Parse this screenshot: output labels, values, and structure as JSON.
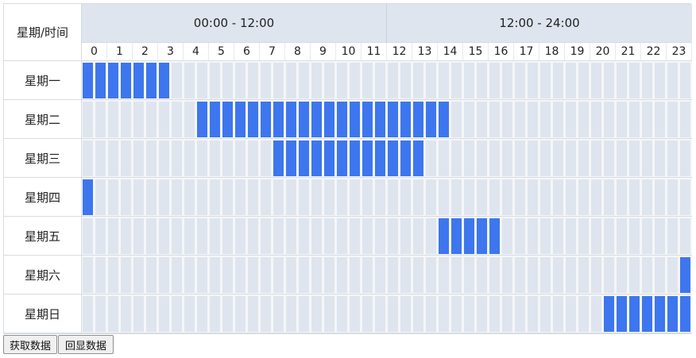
{
  "header": {
    "corner_label": "星期/时间",
    "am_label": "00:00 - 12:00",
    "pm_label": "12:00 - 24:00",
    "hours": [
      "0",
      "1",
      "2",
      "3",
      "4",
      "5",
      "6",
      "7",
      "8",
      "9",
      "10",
      "11",
      "12",
      "13",
      "14",
      "15",
      "16",
      "17",
      "18",
      "19",
      "20",
      "21",
      "22",
      "23"
    ]
  },
  "days": [
    {
      "label": "星期一",
      "selected": [
        0,
        1,
        2,
        3,
        4,
        5,
        6
      ]
    },
    {
      "label": "星期二",
      "selected": [
        9,
        10,
        11,
        12,
        13,
        14,
        15,
        16,
        17,
        18,
        19,
        20,
        21,
        22,
        23,
        24,
        25,
        26,
        27,
        28
      ]
    },
    {
      "label": "星期三",
      "selected": [
        15,
        16,
        17,
        18,
        19,
        20,
        21,
        22,
        23,
        24,
        25,
        26
      ]
    },
    {
      "label": "星期四",
      "selected": [
        0
      ]
    },
    {
      "label": "星期五",
      "selected": [
        28,
        29,
        30,
        31,
        32
      ]
    },
    {
      "label": "星期六",
      "selected": [
        47
      ]
    },
    {
      "label": "星期日",
      "selected": [
        41,
        42,
        43,
        44,
        45,
        46,
        47
      ]
    }
  ],
  "buttons": {
    "get_label": "获取数据",
    "echo_label": "回显数据"
  },
  "colors": {
    "selected": "#3d76ee",
    "unselected": "#dfe5ee",
    "header": "#dfe5ee"
  }
}
